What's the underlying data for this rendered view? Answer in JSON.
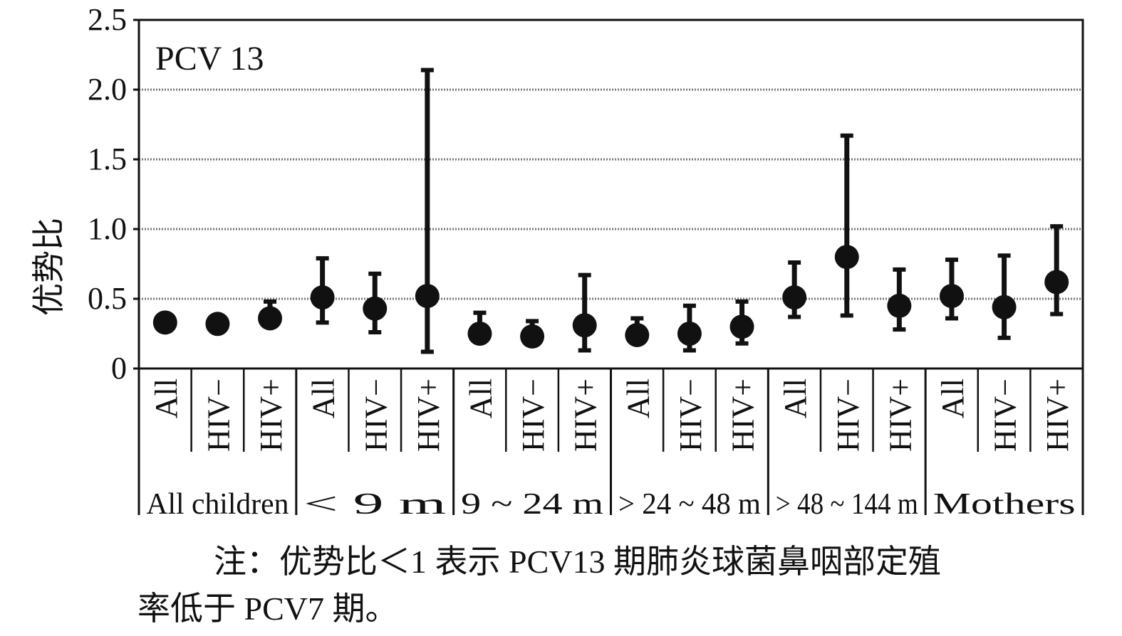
{
  "chart_data": {
    "type": "scatter",
    "panel_label": "PCV 13",
    "ylabel": "优势比",
    "xlabel": "",
    "ylim": [
      0,
      2.5
    ],
    "yticks": [
      "0",
      "0.5",
      "1.0",
      "1.5",
      "2.0",
      "2.5"
    ],
    "ytick_values": [
      0,
      0.5,
      1.0,
      1.5,
      2.0,
      2.5
    ],
    "grid": "horizontal dotted",
    "sub_categories": [
      "All",
      "HIV−",
      "HIV+",
      "All",
      "HIV−",
      "HIV+",
      "All",
      "HIV−",
      "HIV+",
      "All",
      "HIV−",
      "HIV+",
      "All",
      "HIV−",
      "HIV+",
      "All",
      "HIV−",
      "HIV+"
    ],
    "groups": [
      "All children",
      "< 9 m",
      "9 ~ 24 m",
      "> 24 ~ 48 m",
      "> 48 ~ 144 m",
      "Mothers"
    ],
    "values": [
      0.33,
      0.32,
      0.36,
      0.51,
      0.43,
      0.52,
      0.25,
      0.23,
      0.31,
      0.24,
      0.25,
      0.3,
      0.51,
      0.8,
      0.45,
      0.52,
      0.44,
      0.62
    ],
    "ci_lower": [
      0.33,
      0.32,
      0.31,
      0.33,
      0.26,
      0.12,
      0.19,
      0.19,
      0.13,
      0.19,
      0.13,
      0.18,
      0.37,
      0.38,
      0.28,
      0.36,
      0.22,
      0.39
    ],
    "ci_upper": [
      0.33,
      0.32,
      0.48,
      0.79,
      0.68,
      2.14,
      0.4,
      0.34,
      0.67,
      0.36,
      0.45,
      0.48,
      0.76,
      1.67,
      0.71,
      0.78,
      0.81,
      1.02
    ]
  },
  "note": {
    "line1": "注：优势比＜1 表示 PCV13 期肺炎球菌鼻咽部定殖",
    "line2": "率低于 PCV7 期。"
  },
  "colors": {
    "ink": "#111111",
    "grid": "#777777",
    "background": "#ffffff"
  }
}
